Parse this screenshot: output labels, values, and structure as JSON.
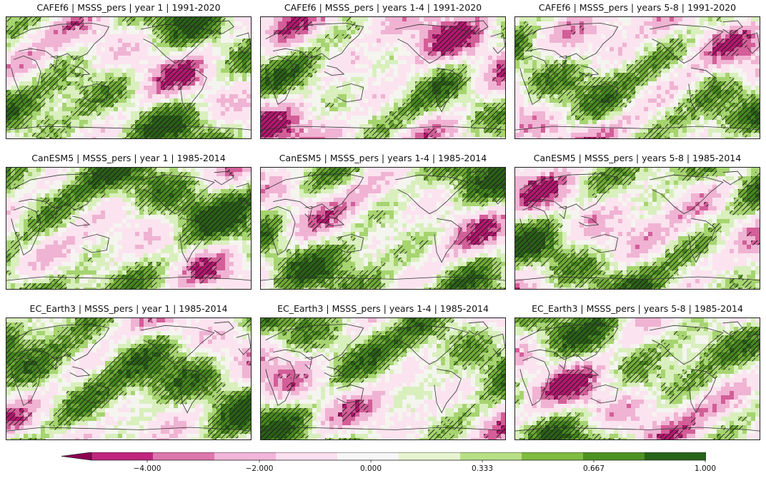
{
  "panels": [
    {
      "title": "CAFEf6 | MSSS_pers | year 1 | 1991-2020",
      "seed": 11,
      "greenBias": 0.62,
      "pinkBias": 0.2
    },
    {
      "title": "CAFEf6 | MSSS_pers | years 1-4 | 1991-2020",
      "seed": 23,
      "greenBias": 0.45,
      "pinkBias": 0.35
    },
    {
      "title": "CAFEf6 | MSSS_pers | years 5-8 | 1991-2020",
      "seed": 37,
      "greenBias": 0.55,
      "pinkBias": 0.3
    },
    {
      "title": "CanESM5 | MSSS_pers | year 1 | 1985-2014",
      "seed": 41,
      "greenBias": 0.68,
      "pinkBias": 0.15
    },
    {
      "title": "CanESM5 | MSSS_pers | years 1-4 | 1985-2014",
      "seed": 53,
      "greenBias": 0.62,
      "pinkBias": 0.25
    },
    {
      "title": "CanESM5 | MSSS_pers | years 5-8 | 1985-2014",
      "seed": 67,
      "greenBias": 0.58,
      "pinkBias": 0.25
    },
    {
      "title": "EC_Earth3 | MSSS_pers | year 1 | 1985-2014",
      "seed": 71,
      "greenBias": 0.7,
      "pinkBias": 0.15
    },
    {
      "title": "EC_Earth3 | MSSS_pers | years 1-4 | 1985-2014",
      "seed": 83,
      "greenBias": 0.62,
      "pinkBias": 0.22
    },
    {
      "title": "EC_Earth3 | MSSS_pers | years 5-8 | 1985-2014",
      "seed": 97,
      "greenBias": 0.55,
      "pinkBias": 0.28
    }
  ],
  "colorbar": {
    "colors": [
      "#8e0152",
      "#c0267e",
      "#de77ae",
      "#f1b6da",
      "#fde0ef",
      "#f7f7f7",
      "#e6f5d0",
      "#b8e186",
      "#7fbc41",
      "#4d9221",
      "#276419"
    ],
    "ticks": [
      "−4.000",
      "−2.000",
      "0.000",
      "0.333",
      "0.667",
      "1.000"
    ]
  },
  "palette": {
    "levels": [
      "#fbe4ef",
      "#f5f5f0",
      "#d9efbd",
      "#a6d470",
      "#6eaa35",
      "#45861f",
      "#2a5f17",
      "#d35e98",
      "#b3176e",
      "#f0b3d3"
    ]
  }
}
